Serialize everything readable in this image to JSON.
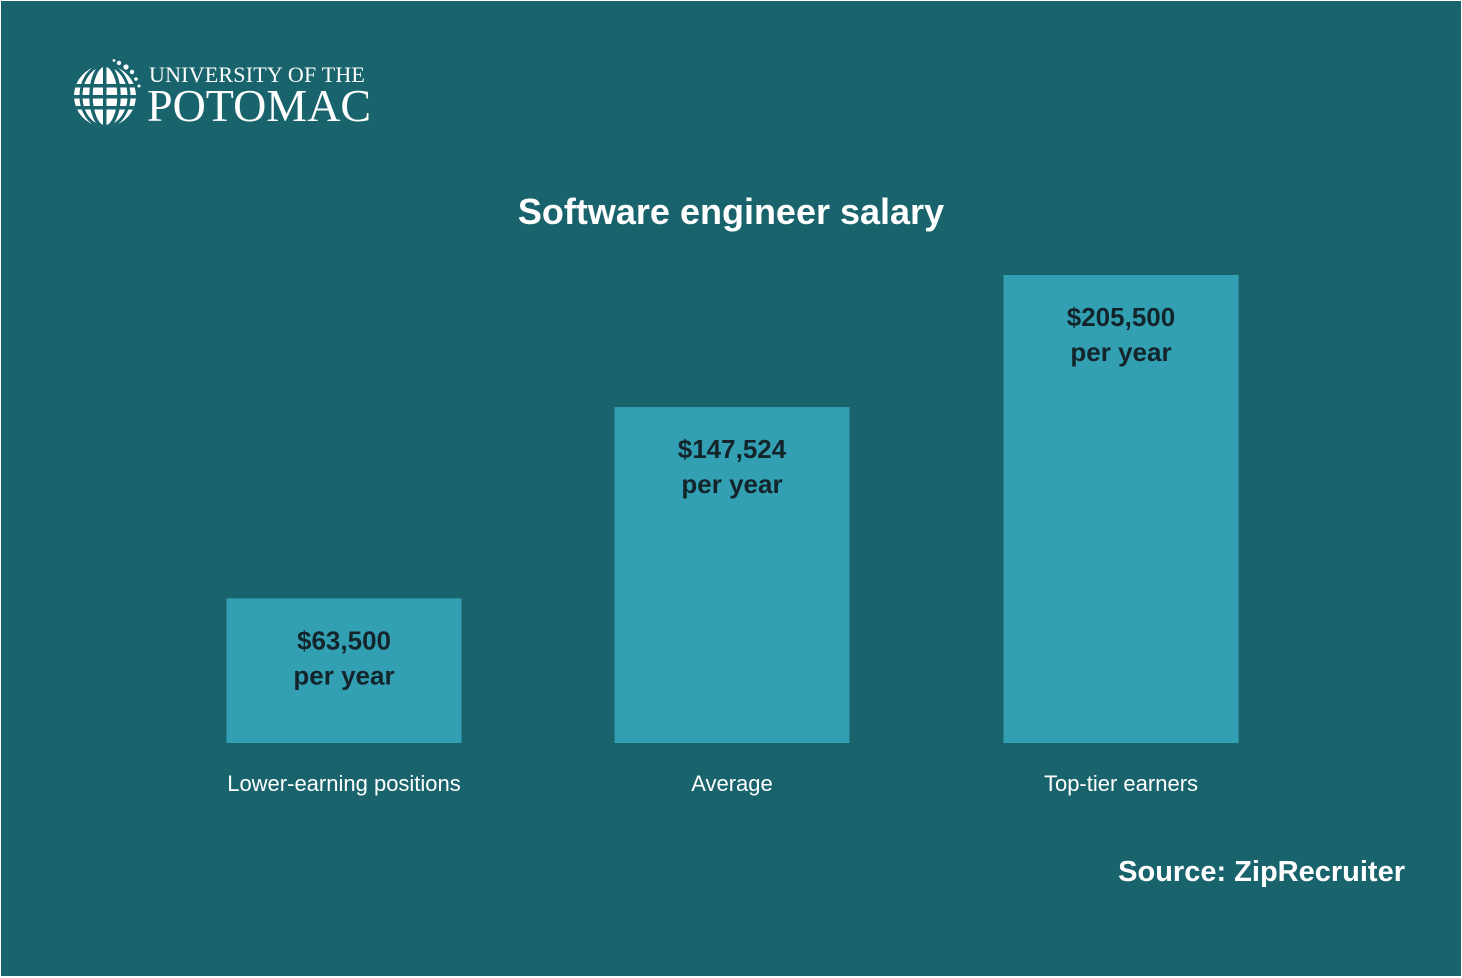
{
  "logo": {
    "line1": "UNIVERSITY OF THE",
    "line2": "POTOMAC"
  },
  "colors": {
    "background": "#19646c",
    "bar": "#329fb3",
    "bar_label": "#13252a",
    "text": "#ffffff"
  },
  "chart_data": {
    "type": "bar",
    "title": "Software engineer salary",
    "categories": [
      "Lower-earning positions",
      "Average",
      "Top-tier earners"
    ],
    "values": [
      63500,
      147524,
      205500
    ],
    "value_labels": [
      "$63,500",
      "$147,524",
      "$205,500"
    ],
    "unit_label": "per year",
    "xlabel": "",
    "ylabel": "",
    "ylim": [
      0,
      205500
    ],
    "grid": false,
    "legend": "none"
  },
  "source": "Source: ZipRecruiter"
}
